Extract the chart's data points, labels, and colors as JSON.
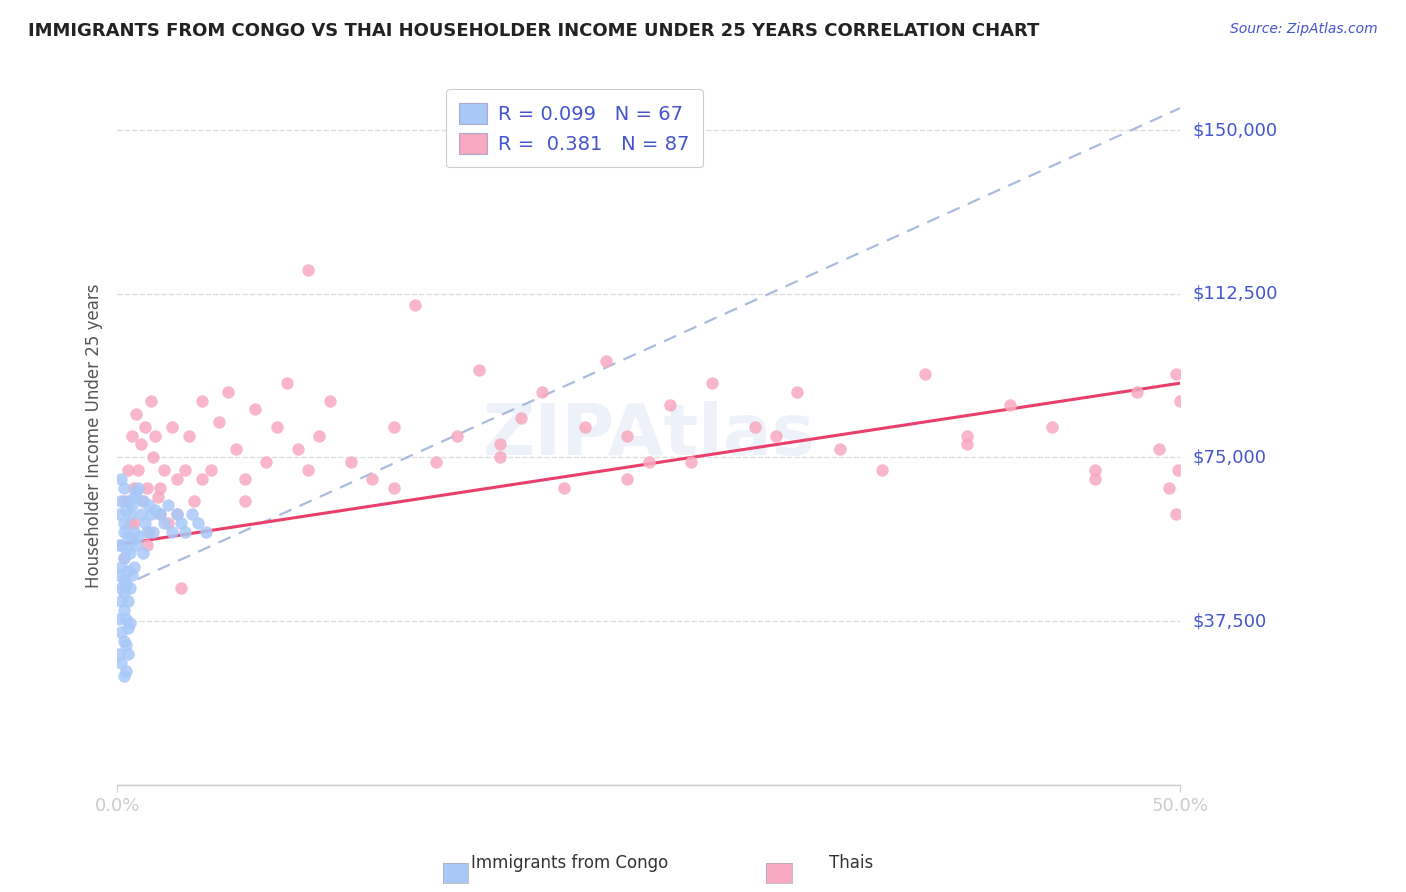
{
  "title": "IMMIGRANTS FROM CONGO VS THAI HOUSEHOLDER INCOME UNDER 25 YEARS CORRELATION CHART",
  "source": "Source: ZipAtlas.com",
  "ylabel": "Householder Income Under 25 years",
  "yticks": [
    0,
    37500,
    75000,
    112500,
    150000
  ],
  "ytick_labels": [
    "",
    "$37,500",
    "$75,000",
    "$112,500",
    "$150,000"
  ],
  "xtick_labels": [
    "0.0%",
    "50.0%"
  ],
  "xlim": [
    0.0,
    0.5
  ],
  "ylim": [
    0,
    160000
  ],
  "watermark": "ZIPAtlas",
  "legend_congo_r": "0.099",
  "legend_congo_n": "67",
  "legend_thai_r": "0.381",
  "legend_thai_n": "87",
  "color_congo": "#a8c8f8",
  "color_thai": "#f8a8c0",
  "color_trendline_dashed": "#aabbdd",
  "color_trendline_thai": "#e8406a",
  "color_blue": "#4455cc",
  "color_title": "#222222",
  "color_grid": "#dddddd",
  "congo_x": [
    0.001,
    0.001,
    0.001,
    0.001,
    0.001,
    0.002,
    0.002,
    0.002,
    0.002,
    0.002,
    0.002,
    0.002,
    0.002,
    0.003,
    0.003,
    0.003,
    0.003,
    0.003,
    0.003,
    0.003,
    0.003,
    0.003,
    0.004,
    0.004,
    0.004,
    0.004,
    0.004,
    0.004,
    0.005,
    0.005,
    0.005,
    0.005,
    0.005,
    0.005,
    0.006,
    0.006,
    0.006,
    0.006,
    0.007,
    0.007,
    0.007,
    0.008,
    0.008,
    0.008,
    0.009,
    0.009,
    0.01,
    0.01,
    0.011,
    0.012,
    0.012,
    0.013,
    0.014,
    0.015,
    0.016,
    0.017,
    0.018,
    0.02,
    0.022,
    0.024,
    0.026,
    0.028,
    0.03,
    0.032,
    0.035,
    0.038,
    0.042
  ],
  "congo_y": [
    55000,
    62000,
    48000,
    38000,
    30000,
    65000,
    55000,
    50000,
    42000,
    35000,
    70000,
    45000,
    28000,
    60000,
    52000,
    47000,
    40000,
    33000,
    25000,
    68000,
    58000,
    44000,
    63000,
    54000,
    46000,
    38000,
    32000,
    26000,
    65000,
    57000,
    49000,
    42000,
    36000,
    30000,
    62000,
    53000,
    45000,
    37000,
    64000,
    56000,
    48000,
    66000,
    58000,
    50000,
    67000,
    55000,
    68000,
    57000,
    62000,
    65000,
    53000,
    60000,
    58000,
    64000,
    62000,
    58000,
    63000,
    62000,
    60000,
    64000,
    58000,
    62000,
    60000,
    58000,
    62000,
    60000,
    58000
  ],
  "thai_x": [
    0.003,
    0.005,
    0.006,
    0.007,
    0.008,
    0.009,
    0.01,
    0.011,
    0.012,
    0.013,
    0.014,
    0.015,
    0.016,
    0.017,
    0.018,
    0.019,
    0.02,
    0.022,
    0.024,
    0.026,
    0.028,
    0.03,
    0.032,
    0.034,
    0.036,
    0.04,
    0.044,
    0.048,
    0.052,
    0.056,
    0.06,
    0.065,
    0.07,
    0.075,
    0.08,
    0.085,
    0.09,
    0.095,
    0.1,
    0.11,
    0.12,
    0.13,
    0.14,
    0.15,
    0.16,
    0.17,
    0.18,
    0.19,
    0.2,
    0.21,
    0.22,
    0.23,
    0.24,
    0.25,
    0.26,
    0.27,
    0.28,
    0.3,
    0.32,
    0.34,
    0.36,
    0.38,
    0.4,
    0.42,
    0.44,
    0.46,
    0.48,
    0.49,
    0.498,
    0.499,
    0.003,
    0.008,
    0.014,
    0.02,
    0.028,
    0.04,
    0.06,
    0.09,
    0.13,
    0.18,
    0.24,
    0.31,
    0.4,
    0.46,
    0.495,
    0.498,
    0.5
  ],
  "thai_y": [
    65000,
    72000,
    60000,
    80000,
    68000,
    85000,
    72000,
    78000,
    65000,
    82000,
    68000,
    58000,
    88000,
    75000,
    80000,
    66000,
    62000,
    72000,
    60000,
    82000,
    70000,
    45000,
    72000,
    80000,
    65000,
    88000,
    72000,
    83000,
    90000,
    77000,
    70000,
    86000,
    74000,
    82000,
    92000,
    77000,
    118000,
    80000,
    88000,
    74000,
    70000,
    82000,
    110000,
    74000,
    80000,
    95000,
    78000,
    84000,
    90000,
    68000,
    82000,
    97000,
    80000,
    74000,
    87000,
    74000,
    92000,
    82000,
    90000,
    77000,
    72000,
    94000,
    80000,
    87000,
    82000,
    70000,
    90000,
    77000,
    94000,
    72000,
    52000,
    60000,
    55000,
    68000,
    62000,
    70000,
    65000,
    72000,
    68000,
    75000,
    70000,
    80000,
    78000,
    72000,
    68000,
    62000,
    88000
  ]
}
